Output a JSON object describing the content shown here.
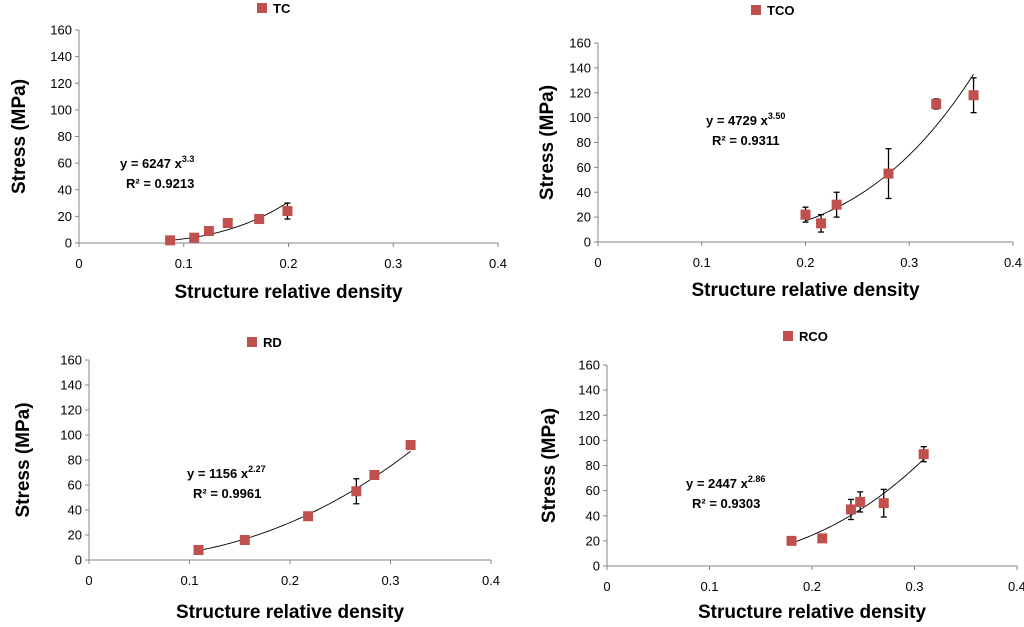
{
  "colors": {
    "marker": "#c0504d",
    "axis": "#868686",
    "fit": "#000000"
  },
  "chart_data": [
    {
      "type": "scatter",
      "legend": "TC",
      "xlabel": "Structure relative density",
      "ylabel": "Stress (MPa)",
      "xlim": [
        0,
        0.4
      ],
      "ylim": [
        0,
        160
      ],
      "xticks": [
        "0",
        "0.1",
        "0.2",
        "0.3",
        "0.4"
      ],
      "yticks": [
        "0",
        "20",
        "40",
        "60",
        "80",
        "100",
        "120",
        "140",
        "160"
      ],
      "x": [
        0.087,
        0.11,
        0.124,
        0.142,
        0.172,
        0.199
      ],
      "y": [
        2,
        4,
        9,
        15,
        18,
        24
      ],
      "err": [
        0,
        0,
        0,
        0,
        0,
        6
      ],
      "fit": {
        "a": 6247,
        "b": 3.3,
        "xmin": 0.087,
        "xmax": 0.199
      },
      "equation": {
        "main": "y = 6247  x",
        "exp": "3.3",
        "r2": "R² = 0.9213"
      }
    },
    {
      "type": "scatter",
      "legend": "TCO",
      "xlabel": "Structure relative density",
      "ylabel": "Stress (MPa)",
      "xlim": [
        0,
        0.4
      ],
      "ylim": [
        0,
        160
      ],
      "xticks": [
        "0",
        "0.1",
        "0.2",
        "0.3",
        "0.4"
      ],
      "yticks": [
        "0",
        "20",
        "40",
        "60",
        "80",
        "100",
        "120",
        "140",
        "160"
      ],
      "x": [
        0.2,
        0.215,
        0.23,
        0.28,
        0.326,
        0.362
      ],
      "y": [
        22,
        15,
        30,
        55,
        111,
        118
      ],
      "err": [
        6,
        7,
        10,
        20,
        4,
        14
      ],
      "fit": {
        "a": 4729,
        "b": 3.5,
        "xmin": 0.2,
        "xmax": 0.362
      },
      "equation": {
        "main": "y = 4729  x",
        "exp": "3.50",
        "r2": "R² = 0.9311"
      }
    },
    {
      "type": "scatter",
      "legend": "RD",
      "xlabel": "Structure relative density",
      "ylabel": "Stress (MPa)",
      "xlim": [
        0,
        0.4
      ],
      "ylim": [
        0,
        160
      ],
      "xticks": [
        "0",
        "0.1",
        "0.2",
        "0.3",
        "0.4"
      ],
      "yticks": [
        "0",
        "20",
        "40",
        "60",
        "80",
        "100",
        "120",
        "140",
        "160"
      ],
      "x": [
        0.109,
        0.155,
        0.218,
        0.266,
        0.284,
        0.32
      ],
      "y": [
        8,
        16,
        35,
        55,
        68,
        92
      ],
      "err": [
        0,
        0,
        0,
        10,
        0,
        0
      ],
      "fit": {
        "a": 1156,
        "b": 2.27,
        "xmin": 0.109,
        "xmax": 0.32
      },
      "equation": {
        "main": "y = 1156  x",
        "exp": "2.27",
        "r2": "R² = 0.9961"
      }
    },
    {
      "type": "scatter",
      "legend": "RCO",
      "xlabel": "Structure relative density",
      "ylabel": "Stress (MPa)",
      "xlim": [
        0,
        0.4
      ],
      "ylim": [
        0,
        160
      ],
      "xticks": [
        "0",
        "0.1",
        "0.2",
        "0.3",
        "0.4"
      ],
      "yticks": [
        "0",
        "20",
        "40",
        "60",
        "80",
        "100",
        "120",
        "140",
        "160"
      ],
      "x": [
        0.18,
        0.21,
        0.238,
        0.247,
        0.27,
        0.309
      ],
      "y": [
        20,
        22,
        45,
        51,
        50,
        89
      ],
      "err": [
        0,
        0,
        8,
        8,
        11,
        6
      ],
      "fit": {
        "a": 2447,
        "b": 2.86,
        "xmin": 0.18,
        "xmax": 0.309
      },
      "equation": {
        "main": "y = 2447  x",
        "exp": "2.86",
        "r2": "R² = 0.9303"
      }
    }
  ]
}
